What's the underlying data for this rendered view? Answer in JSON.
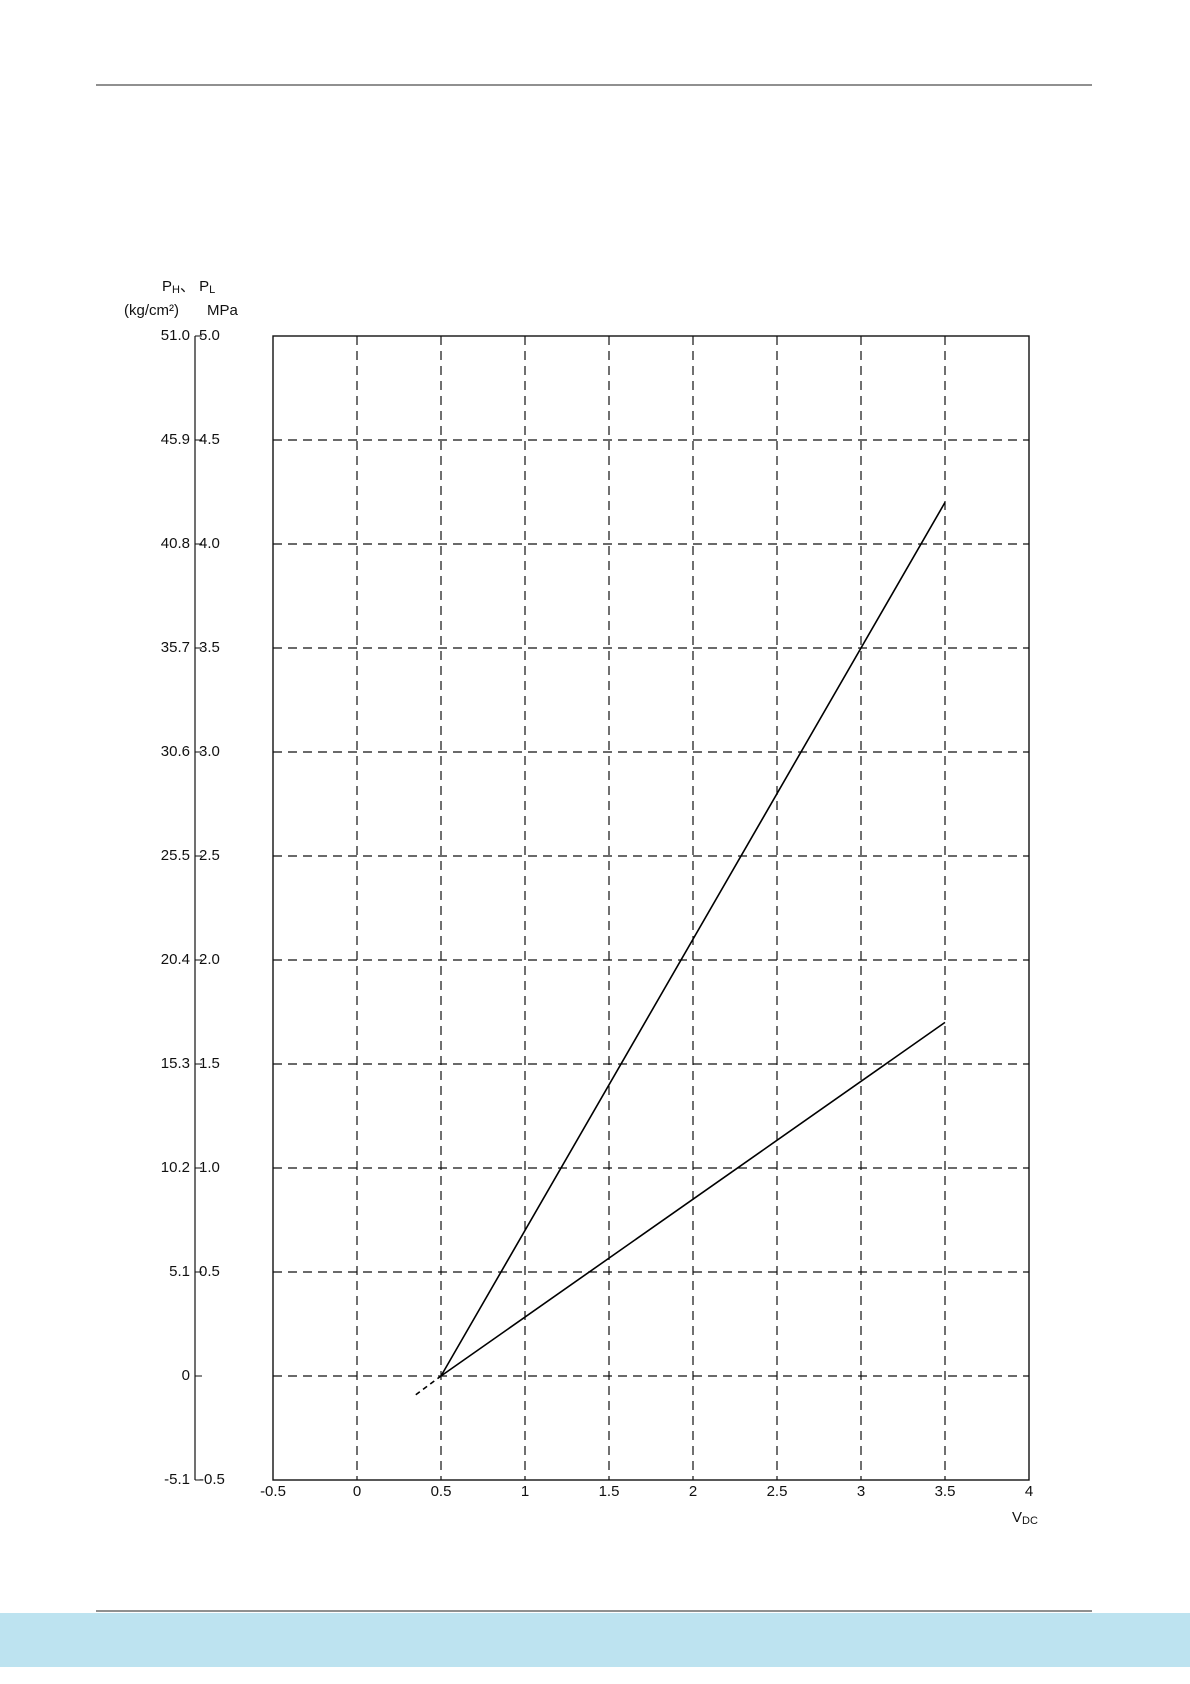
{
  "chart_data": {
    "type": "line",
    "y_title_parts": [
      "P",
      "H",
      "、 P",
      "L"
    ],
    "y_unit_left": "(kg/cm²)",
    "y_unit_right": "MPa",
    "x_label_parts": [
      "V",
      "DC"
    ],
    "xlim": [
      -0.5,
      4
    ],
    "xticks": [
      -0.5,
      0,
      0.5,
      1,
      1.5,
      2,
      2.5,
      3,
      3.5,
      4
    ],
    "ylim": [
      -0.5,
      5
    ],
    "yticks": [
      -0.5,
      0.5,
      {
        "value": 1,
        "label": "1.0"
      },
      1.5,
      {
        "value": 2,
        "label": "2.0"
      },
      2.5,
      {
        "value": 3,
        "label": "3.0"
      },
      3.5,
      {
        "value": 4,
        "label": "4.0"
      },
      4.5,
      {
        "value": 5,
        "label": "5.0"
      }
    ],
    "y2lim": [
      -5.1,
      51
    ],
    "y2ticks": [
      -5.1,
      0,
      5.1,
      10.2,
      15.3,
      20.4,
      25.5,
      30.6,
      35.7,
      40.8,
      45.9,
      {
        "value": 51,
        "label": "51.0"
      }
    ],
    "grid": true,
    "series": [
      {
        "color": "#000000",
        "dash": false,
        "x": [
          0.5,
          3.5
        ],
        "values": [
          0,
          4.2
        ]
      },
      {
        "color": "#000000",
        "dash": false,
        "x": [
          0.5,
          3.5
        ],
        "values": [
          0,
          1.7
        ]
      },
      {
        "color": "#000000",
        "dash": true,
        "x": [
          0.35,
          0.5
        ],
        "values": [
          -0.09,
          0
        ]
      }
    ]
  }
}
